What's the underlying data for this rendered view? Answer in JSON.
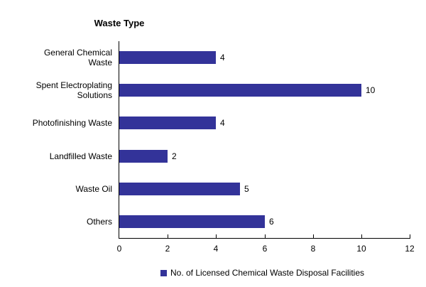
{
  "chart_data": {
    "type": "bar",
    "orientation": "horizontal",
    "title": "Waste Type",
    "categories": [
      "General Chemical Waste",
      "Spent Electroplating Solutions",
      "Photofinishing Waste",
      "Landfilled Waste",
      "Waste Oil",
      "Others"
    ],
    "values": [
      4,
      10,
      4,
      2,
      5,
      6
    ],
    "series": [
      {
        "name": "No. of Licensed Chemical Waste Disposal Facilities",
        "values": [
          4,
          10,
          4,
          2,
          5,
          6
        ]
      }
    ],
    "xlabel": "",
    "ylabel": "Waste Type",
    "xlim": [
      0,
      12
    ],
    "x_ticks": [
      "0",
      "2",
      "4",
      "6",
      "8",
      "10",
      "12"
    ],
    "data_labels": [
      "4",
      "10",
      "4",
      "2",
      "5",
      "6"
    ],
    "grid": false,
    "legend_position": "bottom",
    "legend": [
      "No. of Licensed Chemical Waste Disposal Facilities"
    ],
    "bar_color": "#333399",
    "axis_color": "#000000",
    "background_color": "#ffffff"
  }
}
